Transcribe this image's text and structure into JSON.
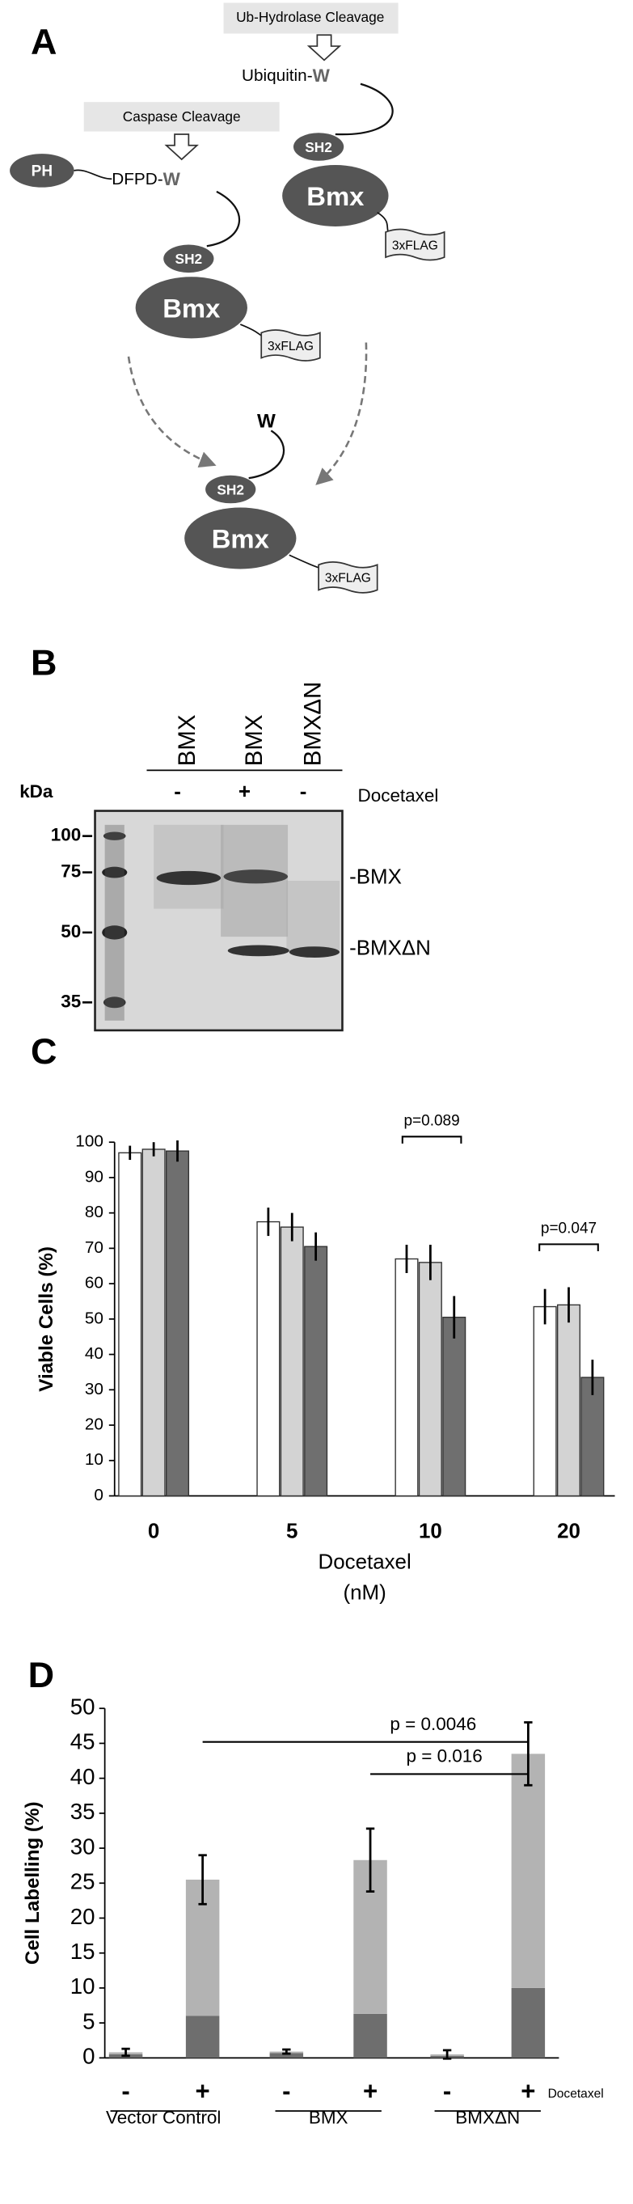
{
  "diagram": {
    "panel_label": "A",
    "ub_label": "Ub-Hydrolase Cleavage",
    "ubiquitin": "Ubiquitin-",
    "w": "W",
    "caspase_label": "Caspase Cleavage",
    "ph": "PH",
    "dfpd": "DFPD-",
    "sh2": "SH2",
    "bmx": "Bmx",
    "flag": "3xFLAG"
  },
  "blot": {
    "panel_label": "B",
    "lanes": [
      "BMX",
      "BMX",
      "BMXΔN"
    ],
    "treatment": [
      "-",
      "+",
      "-"
    ],
    "treatment_label": "Docetaxel",
    "unit": "kDa",
    "markers": [
      100,
      75,
      50,
      35
    ],
    "bands": [
      "-BMX",
      "-BMXΔN"
    ]
  },
  "chart_data": [
    {
      "type": "bar",
      "panel_label": "C",
      "y_label": "Viable Cells (%)",
      "x_label": "Docetaxel",
      "x_unit": "(nM)",
      "categories": [
        "0",
        "5",
        "10",
        "20"
      ],
      "series": [
        {
          "color": "#ffffff",
          "values": [
            97,
            77.5,
            67,
            53.5
          ],
          "errors": [
            2,
            4,
            4,
            5
          ]
        },
        {
          "color": "#d3d3d3",
          "values": [
            98,
            76,
            66,
            54
          ],
          "errors": [
            2,
            4,
            5,
            5
          ]
        },
        {
          "color": "#6f6f6f",
          "values": [
            97.5,
            70.5,
            50.5,
            33.5
          ],
          "errors": [
            3,
            4,
            6,
            5
          ]
        }
      ],
      "ylim": [
        0,
        100
      ],
      "yticks": [
        0,
        10,
        20,
        30,
        40,
        50,
        60,
        70,
        80,
        90,
        100
      ],
      "annotations": [
        "p=0.089",
        "p=0.047"
      ]
    },
    {
      "type": "stacked_bar",
      "panel_label": "D",
      "y_label": "Cell Labelling (%)",
      "categories": [
        "-",
        "+",
        "-",
        "+",
        "-",
        "+"
      ],
      "groups": [
        "Vector Control",
        "BMX",
        "BMXΔN"
      ],
      "treatment_label": "Docetaxel",
      "series": [
        {
          "color": "#6e6e6e",
          "values": [
            0.5,
            6,
            0.7,
            6.3,
            0.3,
            10
          ]
        },
        {
          "color": "#b3b3b3",
          "values": [
            0.3,
            19.5,
            0.2,
            22,
            0.2,
            33.5
          ],
          "errors": [
            0.5,
            3.5,
            0.3,
            4.5,
            0.6,
            4.5
          ]
        }
      ],
      "ylim": [
        0,
        50
      ],
      "yticks": [
        0,
        5,
        10,
        15,
        20,
        25,
        30,
        35,
        40,
        45,
        50
      ],
      "annotations": [
        "p = 0.0046",
        "p = 0.016"
      ]
    }
  ]
}
